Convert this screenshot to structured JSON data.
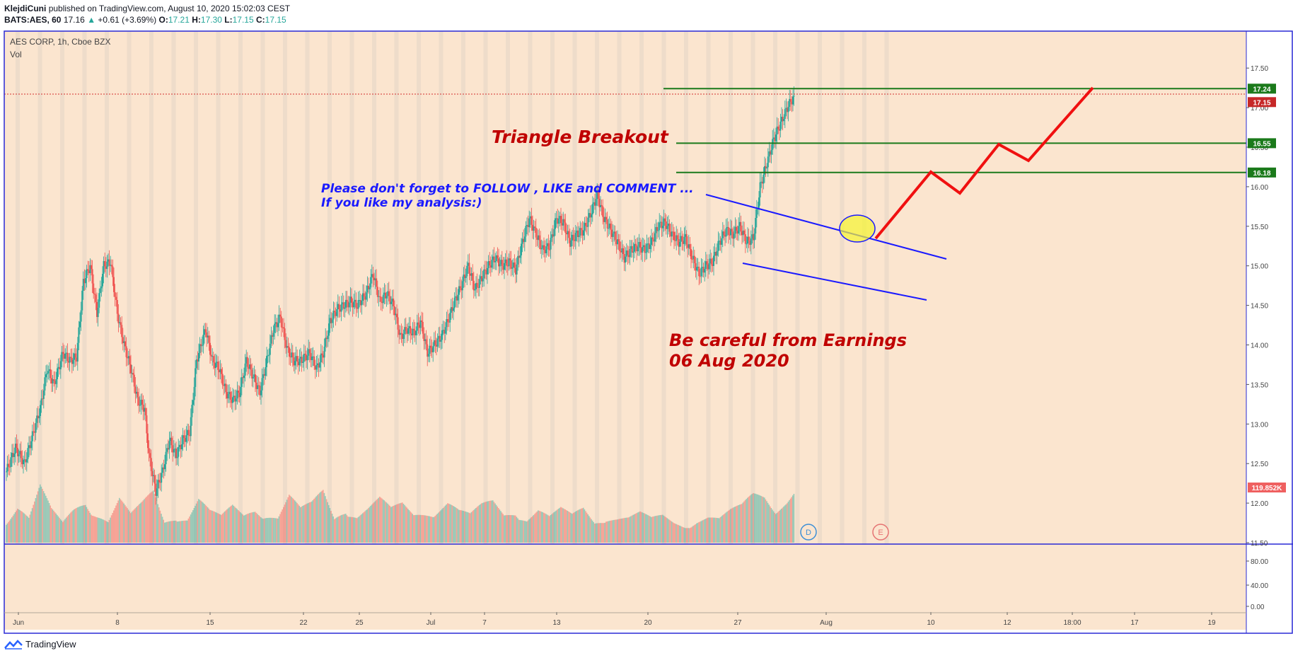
{
  "header": {
    "author": "KlejdiCuni",
    "published_text": "published on TradingView.com, August 10, 2020 15:02:03 CEST",
    "symbol": "BATS:AES, 60",
    "last": "17.16",
    "change": "+0.61 (+3.69%)",
    "open_label": "O:",
    "open": "17.21",
    "high_label": "H:",
    "high": "17.30",
    "low_label": "L:",
    "low": "17.15",
    "close_label": "C:",
    "close": "17.15"
  },
  "legend": {
    "title": "AES CORP, 1h, Cboe BZX",
    "vol_label": "Vol"
  },
  "footer": {
    "brand": "TradingView"
  },
  "colors": {
    "background": "#fbe5cf",
    "up": "#26a69a",
    "down": "#ef5350",
    "resistance": "#1b7a1b",
    "trend": "#1a1aff",
    "projection": "#f01010",
    "annotation_red": "#c00000",
    "annotation_blue": "#1a1aff"
  },
  "annotations": {
    "breakout": "Triangle Breakout",
    "follow_line1": "Please don't forget  to FOLLOW , LIKE and COMMENT ...",
    "follow_line2": "If you like my analysis:)",
    "earnings_line1": "Be careful from Earnings",
    "earnings_line2": "06 Aug 2020",
    "dividend_marker": "D",
    "earnings_marker": "E"
  },
  "chart_data": {
    "type": "candlestick",
    "y_ticks": [
      "17.50",
      "17.00",
      "16.50",
      "16.00",
      "15.50",
      "15.00",
      "14.50",
      "14.00",
      "13.50",
      "13.00",
      "12.50",
      "12.00",
      "11.50"
    ],
    "y_range": [
      11.5,
      17.5
    ],
    "volume_ticks": [
      "80.00",
      "40.00",
      "0.00"
    ],
    "x_ticks": [
      "Jun",
      "8",
      "15",
      "22",
      "25",
      "Jul",
      "7",
      "13",
      "20",
      "27",
      "Aug",
      "10",
      "12",
      "18:00",
      "17",
      "19"
    ],
    "resistance_levels": [
      {
        "value": 17.24,
        "label": "17.24"
      },
      {
        "value": 16.55,
        "label": "16.55"
      },
      {
        "value": 16.18,
        "label": "16.18"
      }
    ],
    "last_price": {
      "value": 17.15,
      "label": "17.15"
    },
    "volume_label": "119.852K",
    "price_path": [
      [
        0,
        12.4
      ],
      [
        8,
        12.7
      ],
      [
        16,
        12.5
      ],
      [
        24,
        12.9
      ],
      [
        30,
        13.2
      ],
      [
        36,
        13.7
      ],
      [
        42,
        13.5
      ],
      [
        50,
        13.9
      ],
      [
        56,
        13.8
      ],
      [
        62,
        13.85
      ],
      [
        68,
        14.8
      ],
      [
        74,
        15.0
      ],
      [
        80,
        14.4
      ],
      [
        86,
        15.0
      ],
      [
        92,
        15.05
      ],
      [
        98,
        14.4
      ],
      [
        104,
        14.0
      ],
      [
        110,
        13.7
      ],
      [
        116,
        13.3
      ],
      [
        122,
        13.2
      ],
      [
        126,
        12.6
      ],
      [
        132,
        12.15
      ],
      [
        138,
        12.4
      ],
      [
        144,
        12.8
      ],
      [
        150,
        12.6
      ],
      [
        156,
        12.8
      ],
      [
        162,
        12.9
      ],
      [
        168,
        13.8
      ],
      [
        176,
        14.2
      ],
      [
        182,
        13.8
      ],
      [
        188,
        13.7
      ],
      [
        194,
        13.4
      ],
      [
        200,
        13.3
      ],
      [
        206,
        13.4
      ],
      [
        212,
        13.8
      ],
      [
        218,
        13.6
      ],
      [
        224,
        13.4
      ],
      [
        230,
        13.8
      ],
      [
        236,
        14.2
      ],
      [
        242,
        14.35
      ],
      [
        248,
        13.95
      ],
      [
        254,
        13.8
      ],
      [
        260,
        13.8
      ],
      [
        268,
        13.9
      ],
      [
        274,
        13.7
      ],
      [
        280,
        13.9
      ],
      [
        286,
        14.3
      ],
      [
        292,
        14.45
      ],
      [
        298,
        14.5
      ],
      [
        304,
        14.55
      ],
      [
        310,
        14.5
      ],
      [
        318,
        14.65
      ],
      [
        324,
        14.9
      ],
      [
        330,
        14.55
      ],
      [
        336,
        14.65
      ],
      [
        342,
        14.5
      ],
      [
        348,
        14.1
      ],
      [
        354,
        14.2
      ],
      [
        360,
        14.15
      ],
      [
        366,
        14.3
      ],
      [
        372,
        13.9
      ],
      [
        378,
        14.0
      ],
      [
        384,
        14.1
      ],
      [
        390,
        14.3
      ],
      [
        396,
        14.55
      ],
      [
        402,
        14.75
      ],
      [
        408,
        15.0
      ],
      [
        414,
        14.7
      ],
      [
        420,
        14.85
      ],
      [
        426,
        15.0
      ],
      [
        432,
        15.1
      ],
      [
        438,
        15.0
      ],
      [
        444,
        15.05
      ],
      [
        450,
        14.95
      ],
      [
        456,
        15.3
      ],
      [
        462,
        15.6
      ],
      [
        468,
        15.4
      ],
      [
        474,
        15.2
      ],
      [
        480,
        15.25
      ],
      [
        486,
        15.6
      ],
      [
        492,
        15.55
      ],
      [
        498,
        15.3
      ],
      [
        504,
        15.4
      ],
      [
        510,
        15.45
      ],
      [
        516,
        15.65
      ],
      [
        522,
        15.9
      ],
      [
        528,
        15.6
      ],
      [
        534,
        15.45
      ],
      [
        540,
        15.3
      ],
      [
        546,
        15.1
      ],
      [
        552,
        15.2
      ],
      [
        558,
        15.25
      ],
      [
        564,
        15.2
      ],
      [
        570,
        15.3
      ],
      [
        576,
        15.5
      ],
      [
        582,
        15.55
      ],
      [
        588,
        15.4
      ],
      [
        594,
        15.3
      ],
      [
        600,
        15.35
      ],
      [
        606,
        15.1
      ],
      [
        612,
        14.9
      ],
      [
        618,
        15.0
      ],
      [
        624,
        15.05
      ],
      [
        630,
        15.3
      ],
      [
        636,
        15.45
      ],
      [
        642,
        15.4
      ],
      [
        648,
        15.5
      ],
      [
        654,
        15.3
      ],
      [
        660,
        15.35
      ],
      [
        666,
        16.0
      ],
      [
        672,
        16.3
      ],
      [
        678,
        16.6
      ],
      [
        684,
        16.8
      ],
      [
        690,
        17.0
      ],
      [
        696,
        17.15
      ]
    ],
    "volume_path": [
      [
        0,
        30
      ],
      [
        10,
        45
      ],
      [
        20,
        28
      ],
      [
        30,
        60
      ],
      [
        40,
        35
      ],
      [
        50,
        22
      ],
      [
        60,
        40
      ],
      [
        70,
        55
      ],
      [
        80,
        38
      ],
      [
        90,
        25
      ],
      [
        100,
        48
      ],
      [
        110,
        30
      ],
      [
        120,
        42
      ],
      [
        130,
        58
      ],
      [
        140,
        26
      ],
      [
        150,
        36
      ],
      [
        160,
        30
      ],
      [
        170,
        50
      ],
      [
        180,
        34
      ],
      [
        190,
        28
      ],
      [
        200,
        40
      ],
      [
        210,
        32
      ],
      [
        220,
        44
      ],
      [
        230,
        38
      ],
      [
        240,
        30
      ],
      [
        250,
        52
      ],
      [
        260,
        36
      ],
      [
        270,
        42
      ],
      [
        280,
        58
      ],
      [
        290,
        30
      ],
      [
        300,
        46
      ],
      [
        310,
        34
      ],
      [
        320,
        40
      ],
      [
        330,
        48
      ],
      [
        340,
        36
      ],
      [
        350,
        42
      ],
      [
        360,
        32
      ],
      [
        370,
        38
      ],
      [
        380,
        44
      ],
      [
        390,
        50
      ],
      [
        400,
        36
      ],
      [
        410,
        30
      ],
      [
        420,
        40
      ],
      [
        430,
        46
      ],
      [
        440,
        34
      ],
      [
        450,
        42
      ],
      [
        460,
        30
      ],
      [
        470,
        38
      ],
      [
        480,
        28
      ],
      [
        490,
        36
      ],
      [
        500,
        30
      ],
      [
        510,
        40
      ],
      [
        520,
        26
      ],
      [
        530,
        34
      ],
      [
        540,
        30
      ],
      [
        550,
        28
      ],
      [
        560,
        32
      ],
      [
        570,
        26
      ],
      [
        580,
        30
      ],
      [
        590,
        24
      ],
      [
        600,
        22
      ],
      [
        610,
        28
      ],
      [
        620,
        30
      ],
      [
        630,
        26
      ],
      [
        640,
        34
      ],
      [
        650,
        40
      ],
      [
        660,
        56
      ],
      [
        670,
        60
      ],
      [
        680,
        48
      ],
      [
        690,
        52
      ],
      [
        696,
        58
      ]
    ]
  }
}
